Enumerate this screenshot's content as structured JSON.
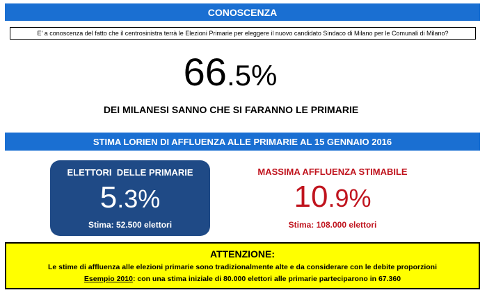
{
  "colors": {
    "band_blue": "#1a6fd2",
    "card_navy": "#1f4a86",
    "accent_red": "#c0141e",
    "warning_yellow": "#ffff00"
  },
  "header": {
    "title": "CONOSCENZA"
  },
  "question": {
    "text": "E' a conoscenza del fatto che il centrosinistra terrà le Elezioni Primarie per eleggere il nuovo candidato Sindaco di Milano per le Comunali di Milano?"
  },
  "knowledge": {
    "pct_int": "66",
    "pct_dec": ".5%",
    "statement": "DEI MILANESI SANNO CHE SI FARANNO LE PRIMARIE"
  },
  "estimate_band": {
    "title": "STIMA LORIEN DI AFFLUENZA ALLE PRIMARIE AL 15 GENNAIO 2016"
  },
  "electors": {
    "title": "ELETTORI  DELLE PRIMARIE",
    "pct_int": "5",
    "pct_dec": ".3%",
    "estimate": "Stima: 52.500 elettori"
  },
  "max_turnout": {
    "title": "MASSIMA AFFLUENZA STIMABILE",
    "pct_int": "10",
    "pct_dec": ".9%",
    "estimate": "Stima: 108.000 elettori"
  },
  "warning": {
    "title": "ATTENZIONE:",
    "line1": "Le stime di affluenza alle elezioni primarie sono tradizionalmente alte e da considerare con le debite proporzioni",
    "example_label": "Esempio 2010",
    "example_text": ": con una stima iniziale di 80.000 elettori alle primarie parteciparono in 67.360"
  }
}
